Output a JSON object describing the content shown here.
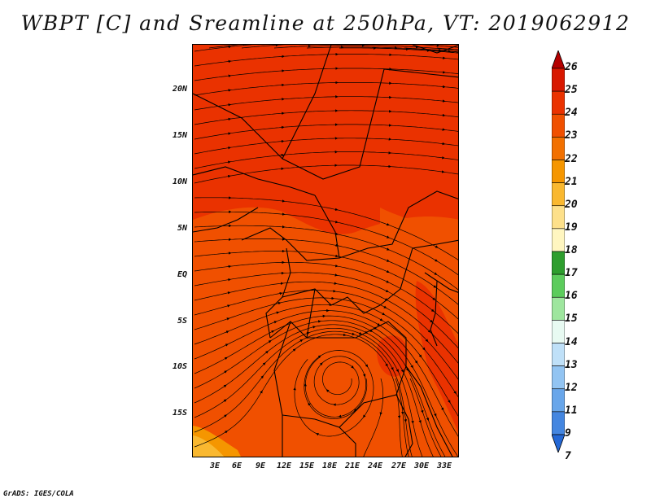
{
  "title": "WBPT [C] and Sreamline at 250hPa, VT: 2019062912",
  "credit": "GrADS: IGES/COLA",
  "axes": {
    "lat_labels": [
      "20N",
      "15N",
      "10N",
      "5N",
      "EQ",
      "5S",
      "10S",
      "15S"
    ],
    "lon_labels": [
      "3E",
      "6E",
      "9E",
      "12E",
      "15E",
      "18E",
      "21E",
      "24E",
      "27E",
      "30E",
      "33E"
    ]
  },
  "colorbar": {
    "labels": [
      "26",
      "25",
      "24",
      "23",
      "22",
      "21",
      "20",
      "19",
      "18",
      "17",
      "16",
      "15",
      "14",
      "13",
      "12",
      "11",
      "9",
      "7"
    ],
    "colors": [
      "#b40000",
      "#d81800",
      "#ea3200",
      "#f05000",
      "#f27000",
      "#f59600",
      "#f9b830",
      "#fde08a",
      "#fff6c0",
      "#2e9e2e",
      "#5ccc5c",
      "#9ee69e",
      "#e8faf2",
      "#bfe0f8",
      "#92c4f2",
      "#68a6ea",
      "#4486e0",
      "#2468d6"
    ]
  },
  "map": {
    "field_colors": {
      "base": "#f05000",
      "level_23": "#ea3200",
      "level_20": "#f9b830",
      "level_21": "#f59600"
    },
    "streamline_color": "#000000",
    "border_color": "#000000"
  }
}
